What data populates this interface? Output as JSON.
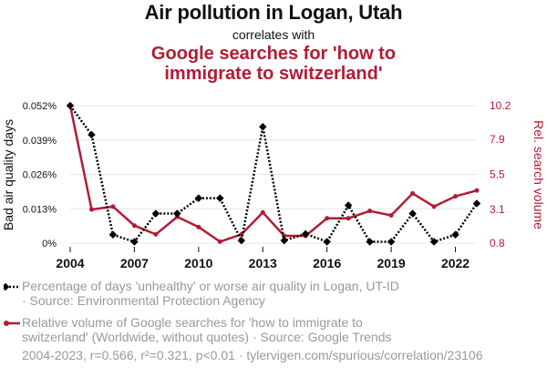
{
  "title": "Air pollution in Logan, Utah",
  "subtitle": "correlates with",
  "title2": "Google searches for 'how to immigrate to switzerland'",
  "title2_lines": [
    "Google searches for 'how to",
    "immigrate to switzerland'"
  ],
  "legend": [
    {
      "text": "Percentage of days 'unhealthy' or worse air quality in Logan, UT-ID · Source: Environmental Protection Agency",
      "lines": [
        "Percentage of days 'unhealthy' or worse air quality in Logan, UT-ID",
        "· Source: Environmental Protection Agency"
      ],
      "color": "#000000",
      "style": "dotted",
      "marker": "diamond"
    },
    {
      "text": "Relative volume of Google searches for 'how to immigrate to switzerland' (Worldwide, without quotes) · Source: Google Trends",
      "lines": [
        "Relative volume of Google searches for 'how to immigrate to",
        "switzerland' (Worldwide, without quotes) · Source: Google Trends"
      ],
      "color": "#b31b34",
      "style": "solid",
      "marker": "circle"
    }
  ],
  "footer": "2004-2023, r=0.566, r²=0.321, p<0.01 · tylervigen.com/spurious/correlation/23106",
  "chart_data": {
    "type": "line",
    "x": [
      2004,
      2005,
      2006,
      2007,
      2008,
      2009,
      2010,
      2011,
      2012,
      2013,
      2014,
      2015,
      2016,
      2017,
      2018,
      2019,
      2020,
      2021,
      2022,
      2023
    ],
    "xticks": [
      "2004",
      "2007",
      "2010",
      "2013",
      "2016",
      "2019",
      "2022"
    ],
    "xlim": [
      2004,
      2023
    ],
    "left_axis": {
      "label": "Bad air quality days",
      "ticks": [
        "0%",
        "0.013%",
        "0.026%",
        "0.039%",
        "0.052%"
      ],
      "tick_values": [
        0,
        0.013,
        0.026,
        0.039,
        0.052
      ],
      "ylim": [
        0,
        0.052
      ]
    },
    "right_axis": {
      "label": "Rel. search volume",
      "ticks": [
        "0.8",
        "3.1",
        "5.5",
        "7.9",
        "10.2"
      ],
      "tick_values": [
        0.8,
        3.1,
        5.5,
        7.9,
        10.2
      ],
      "ylim": [
        0.8,
        10.2
      ]
    },
    "series": [
      {
        "axis": "left",
        "color": "#000000",
        "values": [
          0.052,
          0.041,
          0.0032,
          0.0005,
          0.0112,
          0.0112,
          0.017,
          0.017,
          0.001,
          0.044,
          0.001,
          0.0035,
          0.0005,
          0.0143,
          0.0005,
          0.0005,
          0.0112,
          0.0005,
          0.0032,
          0.015
        ]
      },
      {
        "axis": "right",
        "color": "#b31b34",
        "values": [
          10.2,
          3.1,
          3.3,
          2.0,
          1.4,
          2.6,
          1.9,
          0.9,
          1.4,
          2.9,
          1.3,
          1.3,
          2.5,
          2.5,
          3.0,
          2.7,
          4.2,
          3.3,
          4.0,
          4.4
        ]
      }
    ],
    "grid": true
  }
}
